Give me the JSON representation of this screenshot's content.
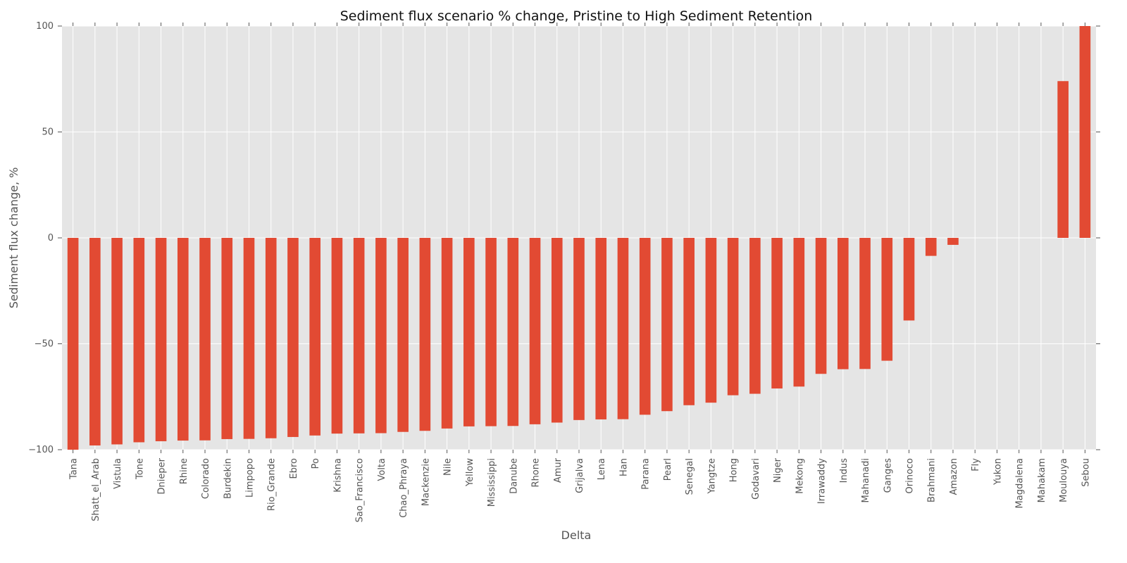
{
  "chart_data": {
    "type": "bar",
    "title": "Sediment flux scenario % change, Pristine to High Sediment Retention",
    "xlabel": "Delta",
    "ylabel": "Sediment flux change, %",
    "ylim": [
      -100,
      100
    ],
    "yticks": [
      -100,
      -50,
      0,
      50,
      100
    ],
    "ytick_labels": [
      "−100",
      "−50",
      "0",
      "50",
      "100"
    ],
    "grid": true,
    "legend": "none",
    "colors": {
      "bar": "#e24a33",
      "plot_bg": "#e5e5e5",
      "grid": "#ffffff"
    },
    "categories": [
      "Tana",
      "Shatt_el_Arab",
      "Vistula",
      "Tone",
      "Dnieper",
      "Rhine",
      "Colorado",
      "Burdekin",
      "Limpopo",
      "Rio_Grande",
      "Ebro",
      "Po",
      "Krishna",
      "Sao_Francisco",
      "Volta",
      "Chao_Phraya",
      "Mackenzie",
      "Nile",
      "Yellow",
      "Mississippi",
      "Danube",
      "Rhone",
      "Amur",
      "Grijalva",
      "Lena",
      "Han",
      "Parana",
      "Pearl",
      "Senegal",
      "Yangtze",
      "Hong",
      "Godavari",
      "Niger",
      "Mekong",
      "Irrawaddy",
      "Indus",
      "Mahanadi",
      "Ganges",
      "Orinoco",
      "Brahmani",
      "Amazon",
      "Fly",
      "Yukon",
      "Magdalena",
      "Mahakam",
      "Moulouya",
      "Sebou"
    ],
    "values": [
      -100,
      -98,
      -97.5,
      -96.5,
      -96,
      -95.7,
      -95.6,
      -95,
      -94.9,
      -94.6,
      -94,
      -93.3,
      -92.4,
      -92.3,
      -92.2,
      -91.6,
      -91.1,
      -90,
      -89,
      -88.9,
      -88.8,
      -88,
      -87.2,
      -86,
      -85.7,
      -85.6,
      -83.5,
      -81.8,
      -79,
      -77.8,
      -74.3,
      -73.6,
      -71.1,
      -70.2,
      -64.2,
      -62,
      -61.9,
      -58,
      -39,
      -8.5,
      -3.3,
      0,
      0,
      0,
      0,
      74,
      100
    ]
  }
}
